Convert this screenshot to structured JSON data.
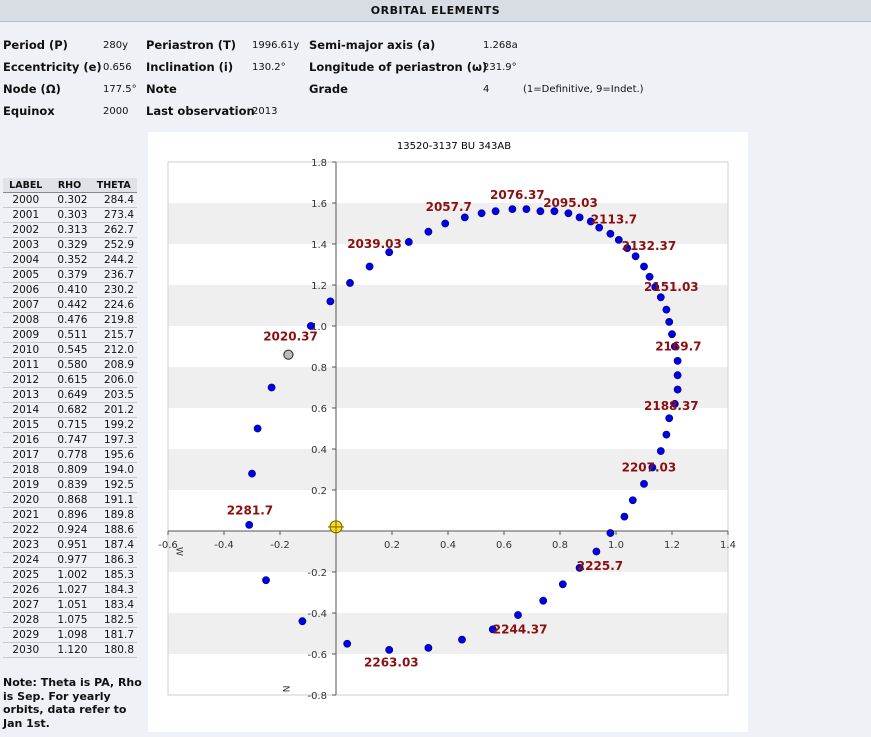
{
  "page_title": "ORBITAL ELEMENTS",
  "elements": {
    "period_label": "Period (P)",
    "period_value": "280y",
    "periastron_label": "Periastron (T)",
    "periastron_value": "1996.61y",
    "semimajor_label": "Semi-major axis (a)",
    "semimajor_value": "1.268a",
    "ecc_label": "Eccentricity (e)",
    "ecc_value": "0.656",
    "incl_label": "Inclination (i)",
    "incl_value": "130.2°",
    "longperi_label": "Longitude of periastron (ω)",
    "longperi_value": "231.9°",
    "node_label": "Node (Ω)",
    "node_value": "177.5°",
    "note_label": "Note",
    "grade_label": "Grade",
    "grade_value": "4",
    "grade_legend": "(1=Definitive, 9=Indet.)",
    "equinox_label": "Equinox",
    "equinox_value": "2000",
    "lastobs_label": "Last observation",
    "lastobs_value": "2013"
  },
  "table": {
    "headers": [
      "LABEL",
      "RHO",
      "THETA"
    ],
    "rows": [
      [
        "2000",
        "0.302",
        "284.4"
      ],
      [
        "2001",
        "0.303",
        "273.4"
      ],
      [
        "2002",
        "0.313",
        "262.7"
      ],
      [
        "2003",
        "0.329",
        "252.9"
      ],
      [
        "2004",
        "0.352",
        "244.2"
      ],
      [
        "2005",
        "0.379",
        "236.7"
      ],
      [
        "2006",
        "0.410",
        "230.2"
      ],
      [
        "2007",
        "0.442",
        "224.6"
      ],
      [
        "2008",
        "0.476",
        "219.8"
      ],
      [
        "2009",
        "0.511",
        "215.7"
      ],
      [
        "2010",
        "0.545",
        "212.0"
      ],
      [
        "2011",
        "0.580",
        "208.9"
      ],
      [
        "2012",
        "0.615",
        "206.0"
      ],
      [
        "2013",
        "0.649",
        "203.5"
      ],
      [
        "2014",
        "0.682",
        "201.2"
      ],
      [
        "2015",
        "0.715",
        "199.2"
      ],
      [
        "2016",
        "0.747",
        "197.3"
      ],
      [
        "2017",
        "0.778",
        "195.6"
      ],
      [
        "2018",
        "0.809",
        "194.0"
      ],
      [
        "2019",
        "0.839",
        "192.5"
      ],
      [
        "2020",
        "0.868",
        "191.1"
      ],
      [
        "2021",
        "0.896",
        "189.8"
      ],
      [
        "2022",
        "0.924",
        "188.6"
      ],
      [
        "2023",
        "0.951",
        "187.4"
      ],
      [
        "2024",
        "0.977",
        "186.3"
      ],
      [
        "2025",
        "1.002",
        "185.3"
      ],
      [
        "2026",
        "1.027",
        "184.3"
      ],
      [
        "2027",
        "1.051",
        "183.4"
      ],
      [
        "2028",
        "1.075",
        "182.5"
      ],
      [
        "2029",
        "1.098",
        "181.7"
      ],
      [
        "2030",
        "1.120",
        "180.8"
      ]
    ]
  },
  "note": "Note: Theta is PA, Rho is Sep. For yearly orbits, data refer to Jan 1st.",
  "chart_data": {
    "type": "scatter",
    "title": "13520-3137 BU  343AB",
    "xlim": [
      -0.6,
      1.4
    ],
    "ylim": [
      -0.8,
      1.8
    ],
    "x_ticks": [
      "-0.6",
      "-0.4",
      "-0.2",
      "0.2",
      "0.4",
      "0.6",
      "0.8",
      "1.0",
      "1.2",
      "1.4"
    ],
    "x_tick_values": [
      -0.6,
      -0.4,
      -0.2,
      0.2,
      0.4,
      0.6,
      0.8,
      1.0,
      1.2,
      1.4
    ],
    "y_ticks": [
      "1.8",
      "1.6",
      "1.4",
      "1.2",
      "1.0",
      "0.8",
      "0.6",
      "0.4",
      "0.2",
      "-0.2",
      "-0.4",
      "-0.6",
      "-0.8"
    ],
    "y_tick_values": [
      1.8,
      1.6,
      1.4,
      1.2,
      1.0,
      0.8,
      0.6,
      0.4,
      0.2,
      -0.2,
      -0.4,
      -0.6,
      -0.8
    ],
    "axis_label_w": "W",
    "axis_label_n": "N",
    "grid": "alternating-horizontal-bands",
    "orbit_points": [
      [
        -0.31,
        0.03
      ],
      [
        -0.3,
        0.28
      ],
      [
        -0.28,
        0.5
      ],
      [
        -0.23,
        0.7
      ],
      [
        -0.09,
        1.0
      ],
      [
        -0.02,
        1.12
      ],
      [
        0.05,
        1.21
      ],
      [
        0.12,
        1.29
      ],
      [
        0.19,
        1.36
      ],
      [
        0.26,
        1.41
      ],
      [
        0.33,
        1.46
      ],
      [
        0.39,
        1.5
      ],
      [
        0.46,
        1.53
      ],
      [
        0.52,
        1.55
      ],
      [
        0.57,
        1.56
      ],
      [
        0.63,
        1.57
      ],
      [
        0.68,
        1.57
      ],
      [
        0.73,
        1.56
      ],
      [
        0.78,
        1.56
      ],
      [
        0.83,
        1.55
      ],
      [
        0.87,
        1.53
      ],
      [
        0.91,
        1.51
      ],
      [
        0.94,
        1.48
      ],
      [
        0.98,
        1.45
      ],
      [
        1.01,
        1.42
      ],
      [
        1.04,
        1.38
      ],
      [
        1.07,
        1.34
      ],
      [
        1.1,
        1.29
      ],
      [
        1.12,
        1.24
      ],
      [
        1.14,
        1.19
      ],
      [
        1.16,
        1.14
      ],
      [
        1.18,
        1.08
      ],
      [
        1.19,
        1.02
      ],
      [
        1.2,
        0.96
      ],
      [
        1.21,
        0.9
      ],
      [
        1.22,
        0.83
      ],
      [
        1.22,
        0.76
      ],
      [
        1.22,
        0.69
      ],
      [
        1.21,
        0.62
      ],
      [
        1.19,
        0.55
      ],
      [
        1.18,
        0.47
      ],
      [
        1.16,
        0.39
      ],
      [
        1.13,
        0.31
      ],
      [
        1.1,
        0.23
      ],
      [
        1.06,
        0.15
      ],
      [
        1.03,
        0.07
      ],
      [
        0.98,
        -0.01
      ],
      [
        0.93,
        -0.1
      ],
      [
        0.87,
        -0.18
      ],
      [
        0.81,
        -0.26
      ],
      [
        0.74,
        -0.34
      ],
      [
        0.65,
        -0.41
      ],
      [
        0.56,
        -0.48
      ],
      [
        0.45,
        -0.53
      ],
      [
        0.33,
        -0.57
      ],
      [
        0.19,
        -0.58
      ],
      [
        0.04,
        -0.55
      ],
      [
        -0.12,
        -0.44
      ],
      [
        -0.25,
        -0.24
      ]
    ],
    "current_point": [
      -0.17,
      0.86
    ],
    "primary_star": [
      0.0,
      0.02
    ],
    "annotations": [
      {
        "text": "2020.37",
        "x": -0.26,
        "y": 0.93
      },
      {
        "text": "2039.03",
        "x": 0.04,
        "y": 1.38
      },
      {
        "text": "2057.7",
        "x": 0.32,
        "y": 1.56
      },
      {
        "text": "2076.37",
        "x": 0.55,
        "y": 1.62
      },
      {
        "text": "2095.03",
        "x": 0.74,
        "y": 1.58
      },
      {
        "text": "2113.7",
        "x": 0.91,
        "y": 1.5
      },
      {
        "text": "2132.37",
        "x": 1.02,
        "y": 1.37
      },
      {
        "text": "2151.03",
        "x": 1.1,
        "y": 1.17
      },
      {
        "text": "2169.7",
        "x": 1.14,
        "y": 0.88
      },
      {
        "text": "2188.37",
        "x": 1.1,
        "y": 0.59
      },
      {
        "text": "2207.03",
        "x": 1.02,
        "y": 0.29
      },
      {
        "text": "2225.7",
        "x": 0.86,
        "y": -0.19
      },
      {
        "text": "2244.37",
        "x": 0.56,
        "y": -0.5
      },
      {
        "text": "2263.03",
        "x": 0.1,
        "y": -0.66
      },
      {
        "text": "2281.7",
        "x": -0.39,
        "y": 0.08
      }
    ]
  }
}
